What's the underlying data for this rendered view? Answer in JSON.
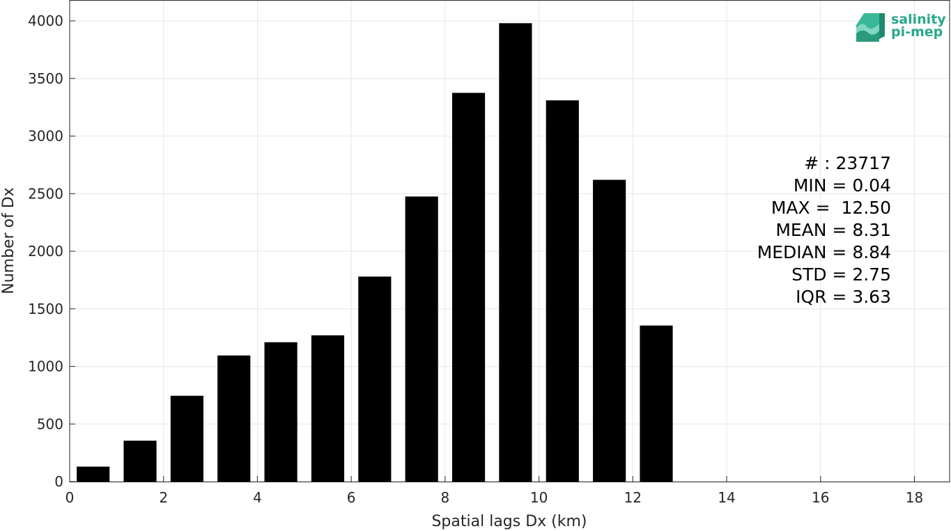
{
  "chart_data": {
    "type": "bar",
    "xlabel": "Spatial lags Dx (km)",
    "ylabel": "Number of Dx",
    "xlim": [
      0,
      18.75
    ],
    "ylim": [
      0,
      4000
    ],
    "xticks": [
      0,
      2,
      4,
      6,
      8,
      10,
      12,
      14,
      16,
      18
    ],
    "yticks": [
      0,
      500,
      1000,
      1500,
      2000,
      2500,
      3000,
      3500,
      4000
    ],
    "grid": true,
    "bar_color": "#000000",
    "bin_width": 1,
    "bar_width": 0.7,
    "bin_centers": [
      0.5,
      1.5,
      2.5,
      3.5,
      4.5,
      5.5,
      6.5,
      7.5,
      8.5,
      9.5,
      10.5,
      11.5,
      12.5
    ],
    "values": [
      130,
      355,
      745,
      1095,
      1210,
      1270,
      1780,
      2475,
      3375,
      3980,
      3310,
      2620,
      1355
    ]
  },
  "stats": [
    "# : 23717",
    "MIN = 0.04",
    "MAX =  12.50",
    "MEAN = 8.31",
    "MEDIAN = 8.84",
    "STD = 2.75",
    "IQR = 3.63"
  ],
  "logo": {
    "line1": "salinity",
    "line2": "pi-mep",
    "color": "#2aa889"
  }
}
